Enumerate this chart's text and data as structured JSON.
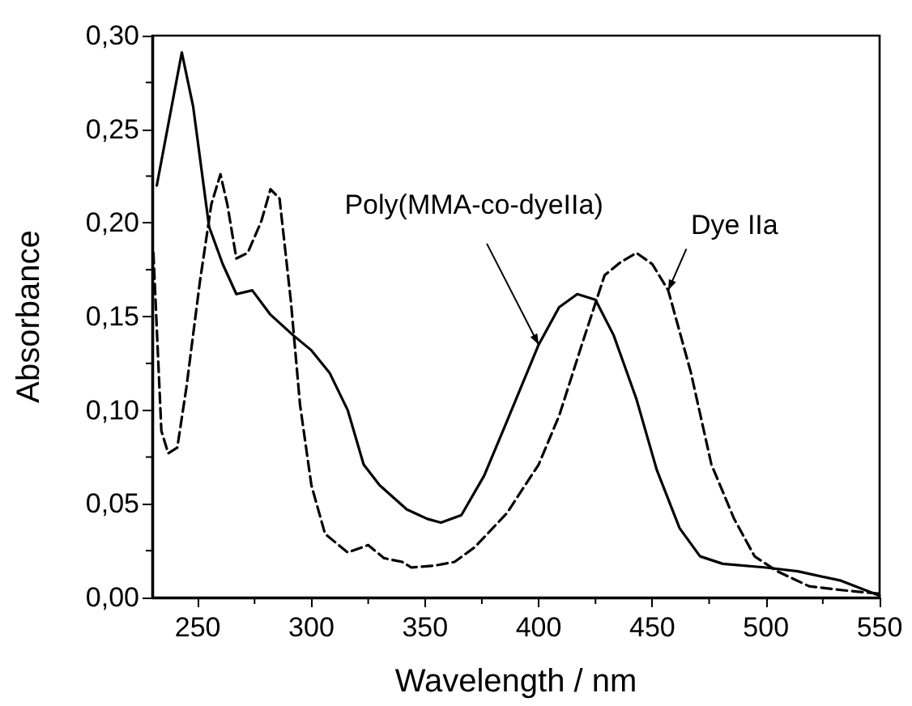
{
  "chart_data": {
    "type": "line",
    "xlabel": "Wavelength / nm",
    "ylabel": "Absorbance",
    "xlim": [
      230,
      550
    ],
    "xticks": [
      250,
      300,
      350,
      400,
      450,
      500,
      550
    ],
    "ylim": [
      0,
      0.3
    ],
    "yticks": [
      {
        "value": 0,
        "label": "0,00"
      },
      {
        "value": 0.05,
        "label": "0,05"
      },
      {
        "value": 0.1,
        "label": "0,10"
      },
      {
        "value": 0.15,
        "label": "0,15"
      },
      {
        "value": 0.2,
        "label": "0,20"
      },
      {
        "value": 0.25,
        "label": "0,25"
      },
      {
        "value": 0.3,
        "label": "0,30"
      }
    ],
    "grid": false,
    "marker": "none",
    "series": [
      {
        "color": "#000000",
        "line_style": "solid",
        "x": [
          232,
          243,
          248,
          255,
          261,
          267,
          274,
          282,
          292,
          300,
          308,
          316,
          323,
          330,
          342,
          351,
          357,
          366,
          376,
          386,
          400,
          409,
          417,
          425,
          433,
          443,
          452,
          462,
          471,
          481,
          500,
          514,
          533,
          550
        ],
        "values": [
          0.22,
          0.291,
          0.262,
          0.198,
          0.178,
          0.162,
          0.164,
          0.151,
          0.14,
          0.132,
          0.12,
          0.1,
          0.071,
          0.06,
          0.047,
          0.042,
          0.04,
          0.044,
          0.065,
          0.094,
          0.135,
          0.155,
          0.162,
          0.159,
          0.14,
          0.106,
          0.068,
          0.037,
          0.022,
          0.018,
          0.016,
          0.014,
          0.009,
          0.001
        ]
      },
      {
        "color": "#000000",
        "line_style": "dashed",
        "x": [
          230.5,
          234,
          237,
          241,
          245,
          251,
          256,
          260,
          263,
          267,
          272,
          278,
          282,
          286,
          291,
          295,
          300,
          306,
          316,
          325,
          332,
          340,
          344,
          354,
          363,
          372,
          386,
          400,
          409,
          419,
          429,
          436,
          443,
          450,
          457,
          467,
          476,
          486,
          495,
          505,
          519,
          533,
          550
        ],
        "values": [
          0.184,
          0.089,
          0.077,
          0.08,
          0.112,
          0.169,
          0.21,
          0.226,
          0.21,
          0.181,
          0.184,
          0.201,
          0.218,
          0.213,
          0.158,
          0.103,
          0.06,
          0.034,
          0.024,
          0.028,
          0.021,
          0.019,
          0.016,
          0.017,
          0.019,
          0.027,
          0.045,
          0.071,
          0.097,
          0.135,
          0.172,
          0.179,
          0.184,
          0.178,
          0.164,
          0.12,
          0.071,
          0.042,
          0.022,
          0.014,
          0.006,
          0.004,
          0.002
        ]
      }
    ],
    "annotations": [
      {
        "text": "Poly(MMA-co-dyeIIa)",
        "x": 400,
        "y": 0.135
      },
      {
        "text": "Dye IIa",
        "x": 457,
        "y": 0.164
      }
    ]
  }
}
